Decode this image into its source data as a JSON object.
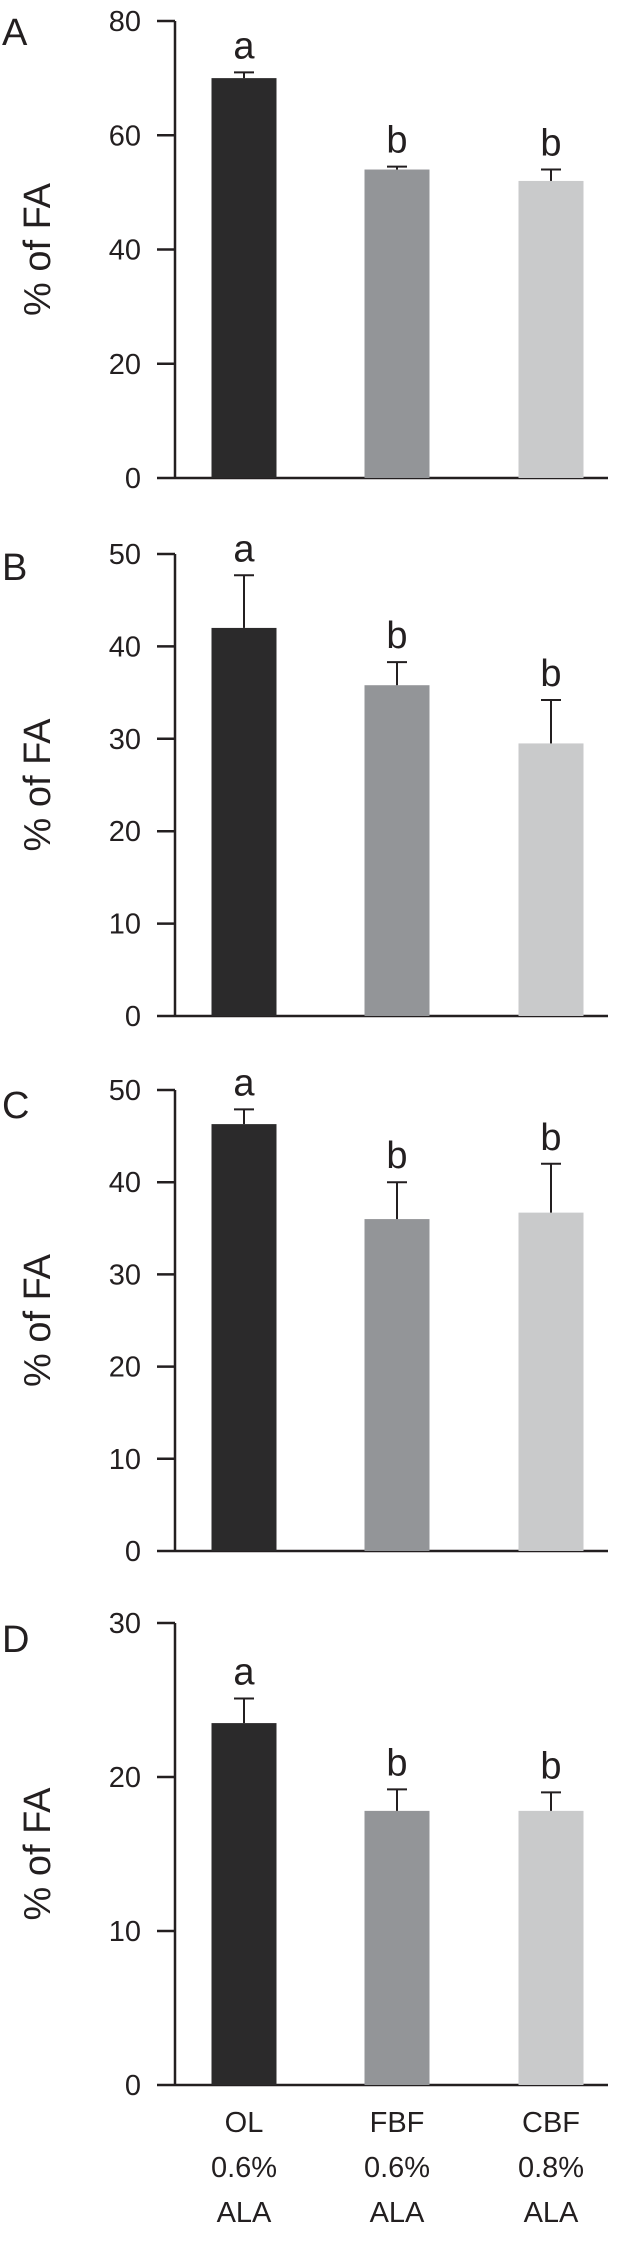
{
  "chart_data": [
    {
      "type": "bar",
      "panel": "A",
      "categories": [
        "OL 0.6% ALA",
        "FBF 0.6% ALA",
        "CBF 0.8% ALA"
      ],
      "values": [
        70,
        54,
        52
      ],
      "errors": [
        1,
        0.5,
        2
      ],
      "significance": [
        "a",
        "b",
        "b"
      ],
      "ylabel": "% of FA",
      "ylim": [
        0,
        80
      ],
      "yticks": [
        "0",
        "20",
        "40",
        "60",
        "80"
      ]
    },
    {
      "type": "bar",
      "panel": "B",
      "categories": [
        "OL 0.6% ALA",
        "FBF 0.6% ALA",
        "CBF 0.8% ALA"
      ],
      "values": [
        42,
        35.8,
        29.5
      ],
      "errors": [
        5.7,
        2.5,
        4.7
      ],
      "significance": [
        "a",
        "b",
        "b"
      ],
      "ylabel": "% of FA",
      "ylim": [
        0,
        50
      ],
      "yticks": [
        "0",
        "10",
        "20",
        "30",
        "40",
        "50"
      ]
    },
    {
      "type": "bar",
      "panel": "C",
      "categories": [
        "OL 0.6% ALA",
        "FBF 0.6% ALA",
        "CBF 0.8% ALA"
      ],
      "values": [
        46.3,
        36,
        36.7
      ],
      "errors": [
        1.6,
        4,
        5.3
      ],
      "significance": [
        "a",
        "b",
        "b"
      ],
      "ylabel": "% of FA",
      "ylim": [
        0,
        50
      ],
      "yticks": [
        "0",
        "10",
        "20",
        "30",
        "40",
        "50"
      ]
    },
    {
      "type": "bar",
      "panel": "D",
      "categories": [
        "OL 0.6% ALA",
        "FBF 0.6% ALA",
        "CBF 0.8% ALA"
      ],
      "values": [
        23.5,
        17.8,
        17.8
      ],
      "errors": [
        1.6,
        1.4,
        1.2
      ],
      "significance": [
        "a",
        "b",
        "b"
      ],
      "ylabel": "% of FA",
      "ylim": [
        0,
        30
      ],
      "yticks": [
        "0",
        "10",
        "20",
        "30"
      ]
    }
  ],
  "x_axis": {
    "labels": [
      [
        "OL",
        "0.6%",
        "ALA"
      ],
      [
        "FBF",
        "0.6%",
        "ALA"
      ],
      [
        "CBF",
        "0.8%",
        "ALA"
      ]
    ]
  },
  "colors": {
    "bars": [
      "#2b2a2b",
      "#939598",
      "#c9cacb"
    ],
    "axis": "#231f20"
  }
}
